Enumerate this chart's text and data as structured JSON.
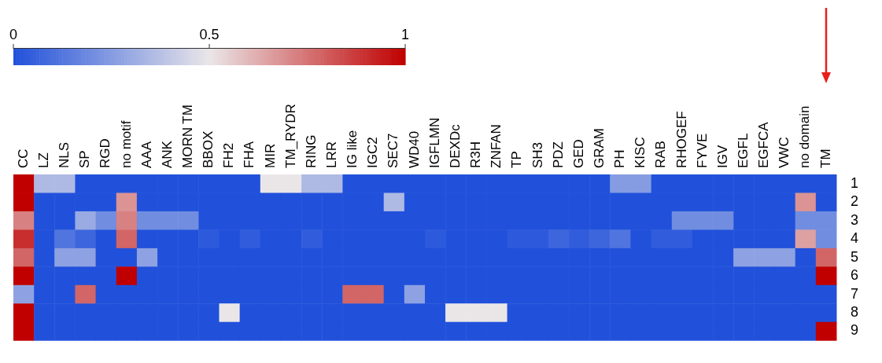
{
  "chart_data": {
    "type": "heatmap",
    "categories": [
      "CC",
      "LZ",
      "NLS",
      "SP",
      "RGD",
      "no motif",
      "AAA",
      "ANK",
      "MORN TM",
      "BBOX",
      "FH2",
      "FHA",
      "MIR",
      "TM_RYDR",
      "RING",
      "LRR",
      "IG like",
      "IGC2",
      "SEC7",
      "WD40",
      "IGFLMN",
      "DEXDc",
      "R3H",
      "ZNFAN",
      "TP",
      "SH3",
      "PDZ",
      "GED",
      "GRAM",
      "PH",
      "KISC",
      "RAB",
      "RHOGEF",
      "FYVE",
      "IGV",
      "EGFL",
      "EGFCA",
      "VWC",
      "no domain",
      "TM"
    ],
    "y_categories": [
      "1",
      "2",
      "3",
      "4",
      "5",
      "6",
      "7",
      "8",
      "9"
    ],
    "cells": [
      [
        1,
        0.35,
        0.35,
        0,
        0,
        0,
        0,
        0,
        0,
        0,
        0,
        0,
        0.5,
        0.5,
        0.35,
        0.35,
        0,
        0,
        0,
        0,
        0,
        0,
        0,
        0,
        0,
        0,
        0,
        0,
        0,
        0.25,
        0.25,
        0,
        0,
        0,
        0,
        0,
        0,
        0,
        0,
        0
      ],
      [
        1,
        0,
        0,
        0,
        0,
        0.68,
        0,
        0,
        0,
        0,
        0,
        0,
        0,
        0,
        0,
        0,
        0,
        0,
        0.35,
        0,
        0,
        0,
        0,
        0,
        0,
        0,
        0,
        0,
        0,
        0,
        0,
        0,
        0,
        0,
        0,
        0,
        0,
        0,
        0.68,
        0
      ],
      [
        0.72,
        0,
        0,
        0.3,
        0.2,
        0.72,
        0.2,
        0.2,
        0.2,
        0,
        0,
        0,
        0,
        0,
        0,
        0,
        0,
        0,
        0,
        0,
        0,
        0,
        0,
        0,
        0,
        0,
        0,
        0,
        0,
        0,
        0,
        0,
        0.2,
        0.2,
        0.2,
        0,
        0,
        0,
        0.2,
        0.2
      ],
      [
        0.9,
        0,
        0.12,
        0.07,
        0,
        0.78,
        0,
        0,
        0,
        0.03,
        0,
        0.04,
        0,
        0,
        0.04,
        0,
        0,
        0,
        0,
        0,
        0.03,
        0,
        0,
        0,
        0.03,
        0.03,
        0.07,
        0.04,
        0.07,
        0.12,
        0,
        0.04,
        0.04,
        0,
        0,
        0,
        0,
        0,
        0.65,
        0.2
      ],
      [
        0.78,
        0,
        0.27,
        0.27,
        0,
        0,
        0.27,
        0,
        0,
        0,
        0,
        0,
        0,
        0,
        0,
        0,
        0,
        0,
        0,
        0,
        0,
        0,
        0,
        0,
        0,
        0,
        0,
        0,
        0,
        0,
        0,
        0,
        0,
        0,
        0,
        0.27,
        0.27,
        0.27,
        0,
        0.78
      ],
      [
        1,
        0,
        0,
        0,
        0,
        1,
        0,
        0,
        0,
        0,
        0,
        0,
        0,
        0,
        0,
        0,
        0,
        0,
        0,
        0,
        0,
        0,
        0,
        0,
        0,
        0,
        0,
        0,
        0,
        0,
        0,
        0,
        0,
        0,
        0,
        0,
        0,
        0,
        0,
        1
      ],
      [
        0.27,
        0,
        0,
        0.78,
        0,
        0,
        0,
        0,
        0,
        0,
        0,
        0,
        0,
        0,
        0,
        0,
        0.78,
        0.78,
        0,
        0.27,
        0,
        0,
        0,
        0,
        0,
        0,
        0,
        0,
        0,
        0,
        0,
        0,
        0,
        0,
        0,
        0,
        0,
        0,
        0,
        0
      ],
      [
        1,
        0,
        0,
        0,
        0,
        0,
        0,
        0,
        0,
        0,
        0.5,
        0,
        0,
        0,
        0,
        0,
        0,
        0,
        0,
        0,
        0,
        0.5,
        0.5,
        0.5,
        0,
        0,
        0,
        0,
        0,
        0,
        0,
        0,
        0,
        0,
        0,
        0,
        0,
        0,
        0,
        0
      ],
      [
        1,
        0,
        0,
        0,
        0,
        0,
        0,
        0,
        0,
        0,
        0,
        0,
        0,
        0,
        0,
        0,
        0,
        0,
        0,
        0,
        0,
        0,
        0,
        0,
        0,
        0,
        0,
        0,
        0,
        0,
        0,
        0,
        0,
        0,
        0,
        0,
        0,
        0,
        0,
        1
      ]
    ],
    "clim": [
      0,
      1
    ],
    "cticks": [
      0,
      0.5,
      1
    ]
  }
}
